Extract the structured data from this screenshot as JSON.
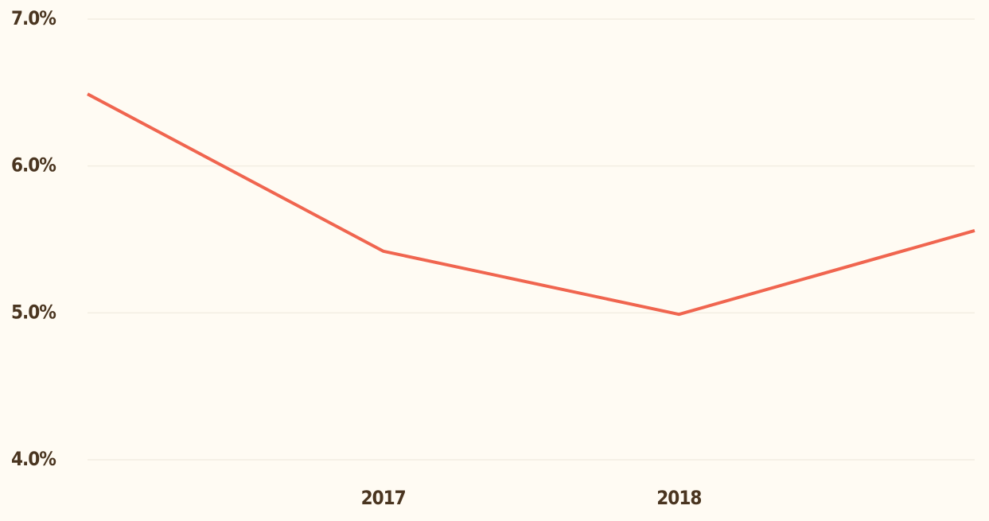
{
  "chart_data": {
    "type": "line",
    "categories": [
      null,
      "2017",
      "2018",
      null
    ],
    "series": [
      {
        "name": null,
        "color": "#f0654f",
        "values": [
          6.49,
          5.42,
          4.99,
          5.56
        ]
      }
    ],
    "ylim": [
      4,
      7
    ],
    "yticks": [
      {
        "value": 4,
        "label": "4.0%"
      },
      {
        "value": 5,
        "label": "5.0%"
      },
      {
        "value": 6,
        "label": "6.0%"
      },
      {
        "value": 7,
        "label": "7.0%"
      }
    ],
    "grid": true
  }
}
